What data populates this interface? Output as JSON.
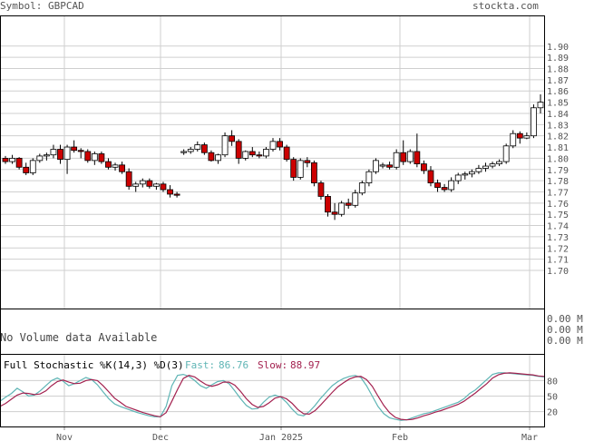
{
  "header": {
    "symbol_label": "Symbol: GBPCAD",
    "site": "stockta.com"
  },
  "volume_panel": {
    "message": "No Volume data Available",
    "ticks": [
      "0.00 M",
      "0.00 M",
      "0.00 M"
    ]
  },
  "stochastic_panel": {
    "title": "Full Stochastic %K(14,3) %D(3)",
    "fast_label": "Fast:",
    "fast_value": "86.76",
    "slow_label": "Slow:",
    "slow_value": "88.97",
    "colors": {
      "fast": "#5fb5b5",
      "slow": "#a3214f"
    },
    "ticks": [
      "80",
      "50",
      "20"
    ]
  },
  "x_axis_labels": [
    "Nov",
    "Dec",
    "Jan 2025",
    "Feb",
    "Mar"
  ],
  "chart_data": [
    {
      "type": "candlestick",
      "title": "Symbol: GBPCAD",
      "ylim": [
        1.69,
        1.91
      ],
      "y_ticks": [
        1.7,
        1.71,
        1.72,
        1.73,
        1.74,
        1.75,
        1.76,
        1.77,
        1.78,
        1.79,
        1.8,
        1.81,
        1.82,
        1.83,
        1.84,
        1.85,
        1.86,
        1.87,
        1.88,
        1.89,
        1.9
      ],
      "x_ticks": [
        "Nov",
        "Dec",
        "Jan 2025",
        "Feb",
        "Mar"
      ],
      "grid": true,
      "colors": {
        "up": "#ffffff",
        "down": "#cc0000",
        "outline": "#000000"
      },
      "ohlc": [
        [
          1.8,
          1.802,
          1.795,
          1.797
        ],
        [
          1.797,
          1.803,
          1.795,
          1.8
        ],
        [
          1.8,
          1.801,
          1.79,
          1.792
        ],
        [
          1.792,
          1.796,
          1.785,
          1.787
        ],
        [
          1.787,
          1.8,
          1.785,
          1.798
        ],
        [
          1.798,
          1.804,
          1.796,
          1.802
        ],
        [
          1.802,
          1.805,
          1.798,
          1.803
        ],
        [
          1.803,
          1.812,
          1.8,
          1.808
        ],
        [
          1.808,
          1.812,
          1.795,
          1.799
        ],
        [
          1.799,
          1.812,
          1.786,
          1.81
        ],
        [
          1.81,
          1.816,
          1.805,
          1.807
        ],
        [
          1.807,
          1.809,
          1.8,
          1.806
        ],
        [
          1.806,
          1.808,
          1.796,
          1.798
        ],
        [
          1.798,
          1.806,
          1.794,
          1.804
        ],
        [
          1.804,
          1.806,
          1.795,
          1.797
        ],
        [
          1.797,
          1.8,
          1.79,
          1.792
        ],
        [
          1.792,
          1.796,
          1.789,
          1.794
        ],
        [
          1.794,
          1.797,
          1.786,
          1.788
        ],
        [
          1.788,
          1.791,
          1.772,
          1.775
        ],
        [
          1.775,
          1.779,
          1.77,
          1.777
        ],
        [
          1.777,
          1.782,
          1.774,
          1.78
        ],
        [
          1.78,
          1.782,
          1.773,
          1.775
        ],
        [
          1.775,
          1.778,
          1.772,
          1.777
        ],
        [
          1.777,
          1.779,
          1.77,
          1.772
        ],
        [
          1.772,
          1.776,
          1.765,
          1.768
        ],
        [
          1.768,
          1.77,
          1.765,
          1.767
        ],
        [
          1.805,
          1.808,
          1.803,
          1.806
        ],
        [
          1.806,
          1.81,
          1.804,
          1.808
        ],
        [
          1.808,
          1.815,
          1.806,
          1.812
        ],
        [
          1.812,
          1.814,
          1.803,
          1.805
        ],
        [
          1.805,
          1.807,
          1.797,
          1.798
        ],
        [
          1.798,
          1.804,
          1.795,
          1.803
        ],
        [
          1.803,
          1.823,
          1.801,
          1.82
        ],
        [
          1.82,
          1.825,
          1.811,
          1.815
        ],
        [
          1.815,
          1.817,
          1.795,
          1.8
        ],
        [
          1.8,
          1.807,
          1.798,
          1.806
        ],
        [
          1.806,
          1.81,
          1.801,
          1.803
        ],
        [
          1.803,
          1.806,
          1.8,
          1.802
        ],
        [
          1.802,
          1.81,
          1.8,
          1.808
        ],
        [
          1.808,
          1.818,
          1.806,
          1.815
        ],
        [
          1.815,
          1.818,
          1.807,
          1.81
        ],
        [
          1.81,
          1.812,
          1.797,
          1.799
        ],
        [
          1.799,
          1.801,
          1.78,
          1.783
        ],
        [
          1.783,
          1.8,
          1.781,
          1.798
        ],
        [
          1.798,
          1.801,
          1.792,
          1.796
        ],
        [
          1.796,
          1.798,
          1.775,
          1.778
        ],
        [
          1.778,
          1.78,
          1.763,
          1.766
        ],
        [
          1.766,
          1.768,
          1.748,
          1.752
        ],
        [
          1.752,
          1.76,
          1.745,
          1.75
        ],
        [
          1.75,
          1.762,
          1.748,
          1.76
        ],
        [
          1.76,
          1.764,
          1.755,
          1.758
        ],
        [
          1.758,
          1.772,
          1.756,
          1.769
        ],
        [
          1.769,
          1.78,
          1.767,
          1.778
        ],
        [
          1.778,
          1.79,
          1.775,
          1.788
        ],
        [
          1.788,
          1.8,
          1.786,
          1.798
        ],
        [
          1.793,
          1.796,
          1.791,
          1.794
        ],
        [
          1.794,
          1.797,
          1.79,
          1.792
        ],
        [
          1.792,
          1.808,
          1.79,
          1.805
        ],
        [
          1.805,
          1.816,
          1.794,
          1.797
        ],
        [
          1.797,
          1.808,
          1.795,
          1.806
        ],
        [
          1.806,
          1.822,
          1.792,
          1.795
        ],
        [
          1.795,
          1.798,
          1.786,
          1.789
        ],
        [
          1.789,
          1.793,
          1.775,
          1.778
        ],
        [
          1.778,
          1.781,
          1.77,
          1.774
        ],
        [
          1.774,
          1.777,
          1.77,
          1.772
        ],
        [
          1.772,
          1.783,
          1.77,
          1.78
        ],
        [
          1.78,
          1.787,
          1.777,
          1.785
        ],
        [
          1.785,
          1.788,
          1.781,
          1.786
        ],
        [
          1.786,
          1.79,
          1.783,
          1.788
        ],
        [
          1.788,
          1.794,
          1.786,
          1.791
        ],
        [
          1.791,
          1.796,
          1.788,
          1.793
        ],
        [
          1.793,
          1.797,
          1.791,
          1.795
        ],
        [
          1.795,
          1.799,
          1.793,
          1.797
        ],
        [
          1.797,
          1.813,
          1.795,
          1.811
        ],
        [
          1.811,
          1.825,
          1.809,
          1.822
        ],
        [
          1.822,
          1.824,
          1.813,
          1.818
        ],
        [
          1.818,
          1.823,
          1.817,
          1.82
        ],
        [
          1.82,
          1.848,
          1.818,
          1.845
        ],
        [
          1.845,
          1.857,
          1.84,
          1.85
        ]
      ]
    },
    {
      "type": "line",
      "title": "Full Stochastic %K(14,3) %D(3)",
      "ylim": [
        0,
        100
      ],
      "y_ticks": [
        20,
        50,
        80
      ],
      "x_ticks": [
        "Nov",
        "Dec",
        "Jan 2025",
        "Feb",
        "Mar"
      ],
      "series": [
        {
          "name": "Fast",
          "values": [
            40,
            48,
            55,
            65,
            58,
            50,
            52,
            60,
            70,
            80,
            85,
            79,
            70,
            74,
            80,
            86,
            82,
            72,
            58,
            45,
            35,
            30,
            26,
            22,
            18,
            15,
            12,
            10,
            10,
            30,
            70,
            90,
            92,
            88,
            80,
            70,
            65,
            72,
            78,
            80,
            74,
            60,
            45,
            32,
            25,
            26,
            38,
            48,
            52,
            48,
            38,
            25,
            14,
            12,
            20,
            32,
            46,
            58,
            70,
            78,
            84,
            88,
            90,
            86,
            70,
            50,
            30,
            16,
            8,
            5,
            3,
            4,
            8,
            12,
            16,
            18,
            22,
            26,
            30,
            34,
            38,
            45,
            55,
            62,
            72,
            82,
            92,
            95,
            95,
            94,
            93,
            92,
            91,
            90,
            88,
            87
          ]
        },
        {
          "name": "Slow",
          "values": [
            30,
            36,
            44,
            52,
            56,
            55,
            53,
            54,
            60,
            70,
            78,
            81,
            77,
            74,
            75,
            80,
            82,
            80,
            70,
            58,
            46,
            38,
            30,
            26,
            22,
            18,
            15,
            12,
            10,
            18,
            40,
            63,
            84,
            90,
            87,
            79,
            72,
            69,
            72,
            77,
            77,
            71,
            59,
            45,
            34,
            28,
            30,
            37,
            46,
            49,
            45,
            36,
            24,
            16,
            15,
            22,
            33,
            45,
            57,
            68,
            76,
            83,
            87,
            88,
            82,
            69,
            50,
            32,
            18,
            9,
            5,
            4,
            5,
            8,
            12,
            15,
            19,
            22,
            26,
            30,
            34,
            40,
            48,
            56,
            65,
            74,
            85,
            91,
            94,
            95,
            94,
            93,
            92,
            91,
            89,
            88
          ]
        }
      ]
    }
  ]
}
